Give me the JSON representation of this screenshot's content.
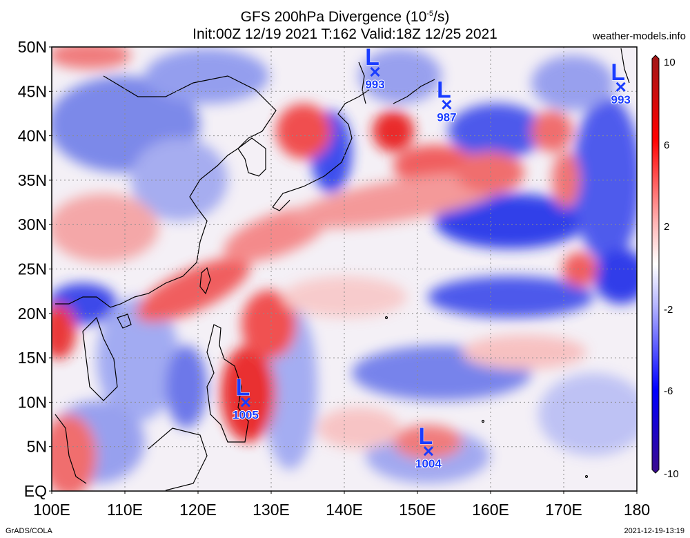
{
  "title": {
    "line1_prefix": "GFS 200hPa Divergence (10",
    "line1_exp": "-5",
    "line1_suffix": "/s)",
    "line2": "Init:00Z 12/19 2021 T:162 Valid:18Z 12/25 2021"
  },
  "site": "weather-models.info",
  "footer": {
    "left": "GrADS/COLA",
    "right": "2021-12-19-13:19"
  },
  "axes": {
    "lat_labels": [
      "EQ",
      "5N",
      "10N",
      "15N",
      "20N",
      "25N",
      "30N",
      "35N",
      "40N",
      "45N",
      "50N"
    ],
    "lat_values": [
      0,
      5,
      10,
      15,
      20,
      25,
      30,
      35,
      40,
      45,
      50
    ],
    "lon_labels": [
      "100E",
      "110E",
      "120E",
      "130E",
      "140E",
      "150E",
      "160E",
      "170E",
      "180"
    ],
    "lon_values": [
      100,
      110,
      120,
      130,
      140,
      150,
      160,
      170,
      180
    ],
    "lon_range": [
      100,
      180
    ],
    "lat_range": [
      0,
      50
    ]
  },
  "colorbar": {
    "labels": [
      "10",
      "6",
      "2",
      "-2",
      "-6",
      "-10"
    ],
    "range": [
      -10,
      10
    ]
  },
  "lows": [
    {
      "symbol": "L",
      "pressure": "993",
      "lon": 144.2,
      "lat": 47.2,
      "color": "#1a3cff"
    },
    {
      "symbol": "L",
      "pressure": "987",
      "lon": 154.0,
      "lat": 43.5,
      "color": "#1a3cff"
    },
    {
      "symbol": "L",
      "pressure": "993",
      "lon": 177.8,
      "lat": 45.5,
      "color": "#1a3cff"
    },
    {
      "symbol": "L",
      "pressure": "1005",
      "lon": 126.5,
      "lat": 10.0,
      "color": "#1a3cff"
    },
    {
      "symbol": "L",
      "pressure": "1004",
      "lon": 151.5,
      "lat": 4.5,
      "color": "#1a3cff"
    }
  ],
  "colors": {
    "red": "#ee1c1c",
    "blue": "#1a2cf0",
    "grid": "#888888"
  }
}
